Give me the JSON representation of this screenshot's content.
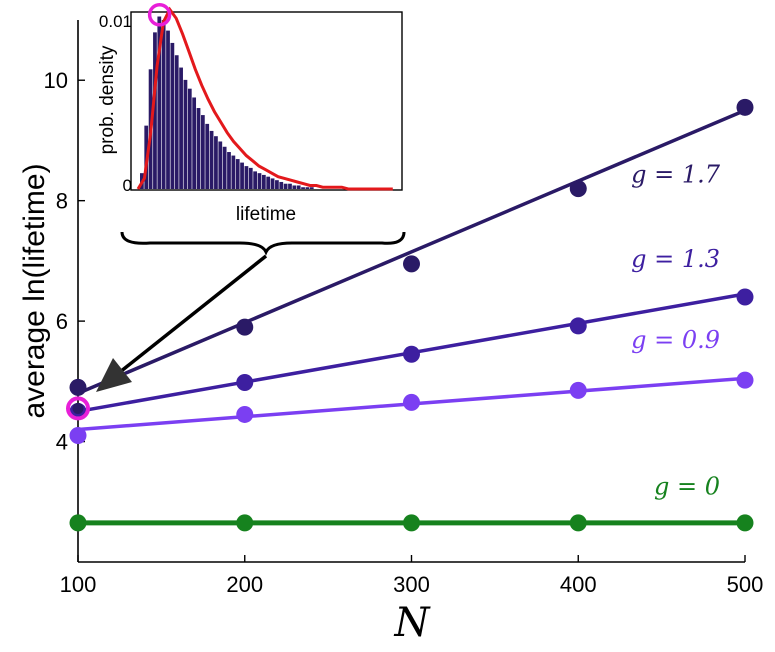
{
  "chart_data": [
    {
      "type": "line",
      "x": [
        100,
        200,
        300,
        400,
        500
      ],
      "xlabel": "N",
      "ylabel": "average ln(lifetime)",
      "xlim": [
        100,
        500
      ],
      "ylim": [
        2,
        11
      ],
      "xticks": [
        "100",
        "200",
        "300",
        "400",
        "500"
      ],
      "yticks": [
        "4",
        "6",
        "8",
        "10"
      ],
      "grid": false,
      "series": [
        {
          "name": "g = 1.7",
          "color": "#2a1a66",
          "values": [
            4.9,
            5.9,
            6.95,
            8.2,
            9.55
          ],
          "fit": [
            4.8,
            9.5
          ]
        },
        {
          "name": "g = 1.3",
          "color": "#3d1fa0",
          "values": [
            4.5,
            4.98,
            5.45,
            5.92,
            6.4
          ],
          "fit": [
            4.5,
            6.45
          ]
        },
        {
          "name": "g = 0.9",
          "color": "#7b3ff2",
          "values": [
            4.1,
            4.45,
            4.65,
            4.85,
            5.02
          ],
          "fit": [
            4.2,
            5.05
          ]
        },
        {
          "name": "g = 0",
          "color": "#16821e",
          "values": [
            2.65,
            2.65,
            2.65,
            2.65,
            2.65
          ],
          "fit": [
            2.65,
            2.65
          ]
        }
      ],
      "highlight": {
        "x": 100,
        "y": 4.55,
        "color": "#e81fd8"
      }
    },
    {
      "type": "bar",
      "xlabel": "lifetime",
      "ylabel": "prob. density",
      "yticks": [
        "0",
        "0.01"
      ],
      "ylim": [
        0,
        0.01
      ],
      "bar_color": "#2a1a66",
      "curve_color": "#e3191c",
      "values": [
        0.0009,
        0.0036,
        0.0068,
        0.0089,
        0.0098,
        0.0096,
        0.009,
        0.0083,
        0.0076,
        0.0069,
        0.0062,
        0.0057,
        0.0052,
        0.0046,
        0.0042,
        0.0037,
        0.0033,
        0.003,
        0.0027,
        0.0024,
        0.0021,
        0.0019,
        0.0017,
        0.0015,
        0.0013,
        0.0012,
        0.001,
        0.0009,
        0.0008,
        0.0007,
        0.0006,
        0.0005,
        0.0004,
        0.0003,
        0.0003,
        0.0002,
        0.0002,
        0.0001,
        0.0001,
        0.0001
      ],
      "curve": [
        0,
        0.0006,
        0.0032,
        0.007,
        0.0095,
        0.0102,
        0.0097,
        0.0088,
        0.0078,
        0.0068,
        0.0059,
        0.0051,
        0.0044,
        0.0038,
        0.0032,
        0.0027,
        0.0023,
        0.0019,
        0.0016,
        0.0013,
        0.0011,
        0.0009,
        0.0007,
        0.0006,
        0.0005,
        0.0004,
        0.0003,
        0.0002,
        0.0002,
        0.0001,
        0.0001,
        0.0001,
        0.0001,
        0,
        0,
        0,
        0,
        0,
        0,
        0,
        0
      ],
      "peak_marker": {
        "bin": 4.5,
        "y": 0.0099,
        "color": "#e81fd8"
      }
    }
  ]
}
